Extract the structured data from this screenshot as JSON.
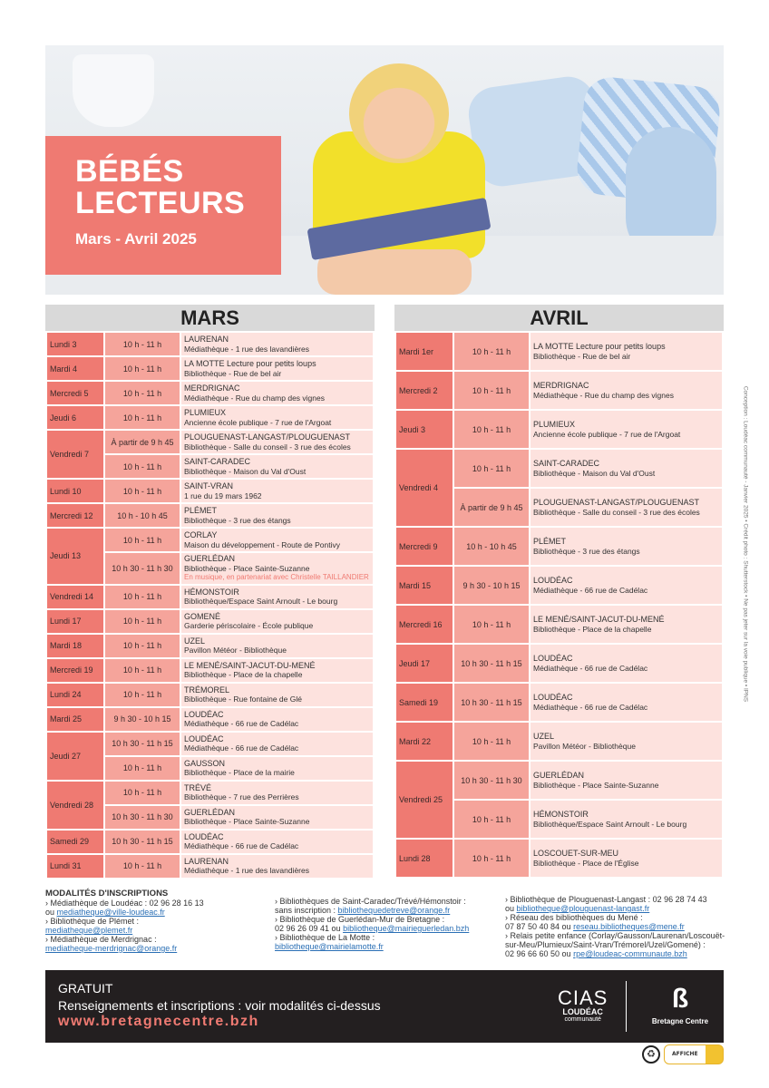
{
  "header": {
    "title_line1": "BÉBÉS",
    "title_line2": "LECTEURS",
    "subtitle": "Mars - Avril 2025"
  },
  "mars": {
    "title": "MARS",
    "rows": [
      {
        "day": "Lundi 3",
        "slots": [
          {
            "time": "10 h - 11 h",
            "place": "LAURENAN",
            "address": "Médiathèque - 1 rue des lavandières"
          }
        ]
      },
      {
        "day": "Mardi 4",
        "slots": [
          {
            "time": "10 h - 11 h",
            "place": "LA MOTTE Lecture pour petits loups",
            "address": "Bibliothèque - Rue de bel air"
          }
        ]
      },
      {
        "day": "Mercredi 5",
        "slots": [
          {
            "time": "10 h - 11 h",
            "place": "MERDRIGNAC",
            "address": "Médiathèque - Rue du champ des vignes"
          }
        ]
      },
      {
        "day": "Jeudi 6",
        "slots": [
          {
            "time": "10 h - 11 h",
            "place": "PLUMIEUX",
            "address": "Ancienne école publique - 7 rue de l'Argoat"
          }
        ]
      },
      {
        "day": "Vendredi 7",
        "slots": [
          {
            "time": "À partir de 9 h 45",
            "place": "PLOUGUENAST-LANGAST/PLOUGUENAST",
            "address": "Bibliothèque - Salle du conseil - 3 rue des écoles"
          },
          {
            "time": "10 h - 11 h",
            "place": "SAINT-CARADEC",
            "address": "Bibliothèque - Maison du Val d'Oust"
          }
        ]
      },
      {
        "day": "Lundi 10",
        "slots": [
          {
            "time": "10 h - 11 h",
            "place": "SAINT-VRAN",
            "address": "1 rue du 19 mars 1962"
          }
        ]
      },
      {
        "day": "Mercredi 12",
        "slots": [
          {
            "time": "10 h - 10 h 45",
            "place": "PLÉMET",
            "address": "Bibliothèque - 3 rue des étangs"
          }
        ]
      },
      {
        "day": "Jeudi 13",
        "slots": [
          {
            "time": "10 h - 11 h",
            "place": "CORLAY",
            "address": "Maison du développement - Route de Pontivy"
          },
          {
            "time": "10 h 30 - 11 h 30",
            "place": "GUERLÉDAN",
            "address": "Bibliothèque - Place Sainte-Suzanne",
            "note": "En musique, en partenariat avec Christelle TAILLANDIER"
          }
        ]
      },
      {
        "day": "Vendredi 14",
        "slots": [
          {
            "time": "10 h - 11 h",
            "place": "HÉMONSTOIR",
            "address": "Bibliothèque/Espace Saint Arnoult - Le bourg"
          }
        ]
      },
      {
        "day": "Lundi 17",
        "slots": [
          {
            "time": "10 h - 11 h",
            "place": "GOMENÉ",
            "address": "Garderie périscolaire - École publique"
          }
        ]
      },
      {
        "day": "Mardi 18",
        "slots": [
          {
            "time": "10 h - 11 h",
            "place": "UZEL",
            "address": "Pavillon Météor - Bibliothèque"
          }
        ]
      },
      {
        "day": "Mercredi 19",
        "slots": [
          {
            "time": "10 h - 11 h",
            "place": "LE MENÉ/SAINT-JACUT-DU-MENÉ",
            "address": "Bibliothèque - Place de la chapelle"
          }
        ]
      },
      {
        "day": "Lundi 24",
        "slots": [
          {
            "time": "10 h - 11 h",
            "place": "TRÉMOREL",
            "address": "Bibliothèque - Rue fontaine de Glé"
          }
        ]
      },
      {
        "day": "Mardi 25",
        "slots": [
          {
            "time": "9 h 30 - 10 h 15",
            "place": "LOUDÉAC",
            "address": "Médiathèque - 66 rue de Cadélac"
          }
        ]
      },
      {
        "day": "Jeudi 27",
        "slots": [
          {
            "time": "10 h 30 - 11 h 15",
            "place": "LOUDÉAC",
            "address": "Médiathèque - 66 rue de Cadélac"
          },
          {
            "time": "10 h - 11 h",
            "place": "GAUSSON",
            "address": "Bibliothèque - Place de la mairie"
          }
        ]
      },
      {
        "day": "Vendredi 28",
        "slots": [
          {
            "time": "10 h - 11 h",
            "place": "TRÉVÉ",
            "address": "Bibliothèque - 7 rue des Perrières"
          },
          {
            "time": "10 h 30 - 11 h 30",
            "place": "GUERLÉDAN",
            "address": "Bibliothèque - Place Sainte-Suzanne"
          }
        ]
      },
      {
        "day": "Samedi 29",
        "slots": [
          {
            "time": "10 h 30 - 11 h 15",
            "place": "LOUDÉAC",
            "address": "Médiathèque - 66 rue de Cadélac"
          }
        ]
      },
      {
        "day": "Lundi 31",
        "slots": [
          {
            "time": "10 h - 11 h",
            "place": "LAURENAN",
            "address": "Médiathèque - 1 rue des lavandières"
          }
        ]
      }
    ]
  },
  "avril": {
    "title": "AVRIL",
    "rows": [
      {
        "day": "Mardi 1er",
        "slots": [
          {
            "time": "10 h - 11 h",
            "place": "LA MOTTE Lecture pour petits loups",
            "address": "Bibliothèque - Rue de bel air"
          }
        ]
      },
      {
        "day": "Mercredi 2",
        "slots": [
          {
            "time": "10 h - 11 h",
            "place": "MERDRIGNAC",
            "address": "Médiathèque - Rue du champ des vignes"
          }
        ]
      },
      {
        "day": "Jeudi 3",
        "slots": [
          {
            "time": "10 h - 11 h",
            "place": "PLUMIEUX",
            "address": "Ancienne école publique - 7 rue de l'Argoat"
          }
        ]
      },
      {
        "day": "Vendredi 4",
        "slots": [
          {
            "time": "10 h - 11 h",
            "place": "SAINT-CARADEC",
            "address": "Bibliothèque - Maison du Val d'Oust"
          },
          {
            "time": "À partir de 9 h 45",
            "place": "PLOUGUENAST-LANGAST/PLOUGUENAST",
            "address": "Bibliothèque - Salle du conseil - 3 rue des écoles"
          }
        ]
      },
      {
        "day": "Mercredi 9",
        "slots": [
          {
            "time": "10 h - 10 h 45",
            "place": "PLÉMET",
            "address": "Bibliothèque - 3 rue des étangs"
          }
        ]
      },
      {
        "day": "Mardi 15",
        "slots": [
          {
            "time": "9 h 30 - 10 h 15",
            "place": "LOUDÉAC",
            "address": "Médiathèque - 66 rue de Cadélac"
          }
        ]
      },
      {
        "day": "Mercredi 16",
        "slots": [
          {
            "time": "10 h - 11 h",
            "place": "LE MENÉ/SAINT-JACUT-DU-MENÉ",
            "address": "Bibliothèque - Place de la chapelle"
          }
        ]
      },
      {
        "day": "Jeudi 17",
        "slots": [
          {
            "time": "10 h 30 - 11 h 15",
            "place": "LOUDÉAC",
            "address": "Médiathèque - 66 rue de Cadélac"
          }
        ]
      },
      {
        "day": "Samedi 19",
        "slots": [
          {
            "time": "10 h 30 - 11 h 15",
            "place": "LOUDÉAC",
            "address": "Médiathèque - 66 rue de Cadélac"
          }
        ]
      },
      {
        "day": "Mardi 22",
        "slots": [
          {
            "time": "10 h - 11 h",
            "place": "UZEL",
            "address": "Pavillon Météor - Bibliothèque"
          }
        ]
      },
      {
        "day": "Vendredi 25",
        "slots": [
          {
            "time": "10 h 30 - 11 h 30",
            "place": "GUERLÉDAN",
            "address": "Bibliothèque - Place Sainte-Suzanne"
          },
          {
            "time": "10 h - 11 h",
            "place": "HÉMONSTOIR",
            "address": "Bibliothèque/Espace Saint Arnoult - Le bourg"
          }
        ]
      },
      {
        "day": "Lundi 28",
        "slots": [
          {
            "time": "10 h - 11 h",
            "place": "LOSCOUET-SUR-MEU",
            "address": "Bibliothèque - Place de l'Église"
          }
        ]
      }
    ]
  },
  "inscriptions": {
    "title": "MODALITÉS D'INSCRIPTIONS",
    "col1": [
      {
        "text": "› Médiathèque de Loudéac : 02 96 28 16 13",
        "pre": "ou ",
        "link": "mediatheque@ville-loudeac.fr"
      },
      {
        "text": "› Bibliothèque de Plémet :",
        "pre": "",
        "link": "mediatheque@plemet.fr"
      },
      {
        "text": "› Médiathèque de Merdrignac :",
        "pre": "",
        "link": "mediatheque-merdrignac@orange.fr"
      }
    ],
    "col2": [
      {
        "text": "› Bibliothèques de Saint-Caradec/Trévé/Hémonstoir :",
        "pre": "sans inscription : ",
        "link": "bibliothequedetreve@orange.fr"
      },
      {
        "text": "› Bibliothèque de Guerlédan-Mur de Bretagne :",
        "pre": "02 96 26 09 41 ou ",
        "link": "bibliotheque@mairieguerledan.bzh"
      },
      {
        "text": "› Bibliothèque de La Motte :",
        "pre": "",
        "link": "bibliotheque@mairielamotte.fr"
      }
    ],
    "col3": [
      {
        "text": "› Bibliothèque de Plouguenast-Langast : 02 96 28 74 43",
        "pre": "ou ",
        "link": "bibliotheque@plouguenast-langast.fr"
      },
      {
        "text": "› Réseau des bibliothèques du Mené :",
        "pre": "07 87 50 40 84 ou ",
        "link": "reseau.bibliotheques@mene.fr"
      },
      {
        "text": "› Relais petite enfance (Corlay/Gausson/Laurenan/Loscouët-sur-Meu/Plumieux/Saint-Vran/Trémorel/Uzel/Gomené) :",
        "pre": "02 96 66 60 50 ou ",
        "link": "rpe@loudeac-communaute.bzh"
      }
    ]
  },
  "footer": {
    "free": "GRATUIT",
    "info": "Renseignements et inscriptions : voir modalités ci-dessus",
    "url": "www.bretagnecentre.bzh",
    "logo_cias": "CIAS",
    "logo_cias_sub": "LOUDÉAC",
    "logo_cias_sub2": "communauté",
    "logo_bc": "Bretagne Centre"
  },
  "credits": "Conception : Loudéac communauté - Janvier 2025 • Crédit photo : Shutterstock • Ne pas jeter sur la voie publique • IPNS",
  "badges": {
    "affiche": "AFFICHE"
  },
  "colors": {
    "accent": "#ef7a72",
    "time_cell": "#f5a49b",
    "place_cell": "#fde2de",
    "footer_bg": "#231f20"
  }
}
